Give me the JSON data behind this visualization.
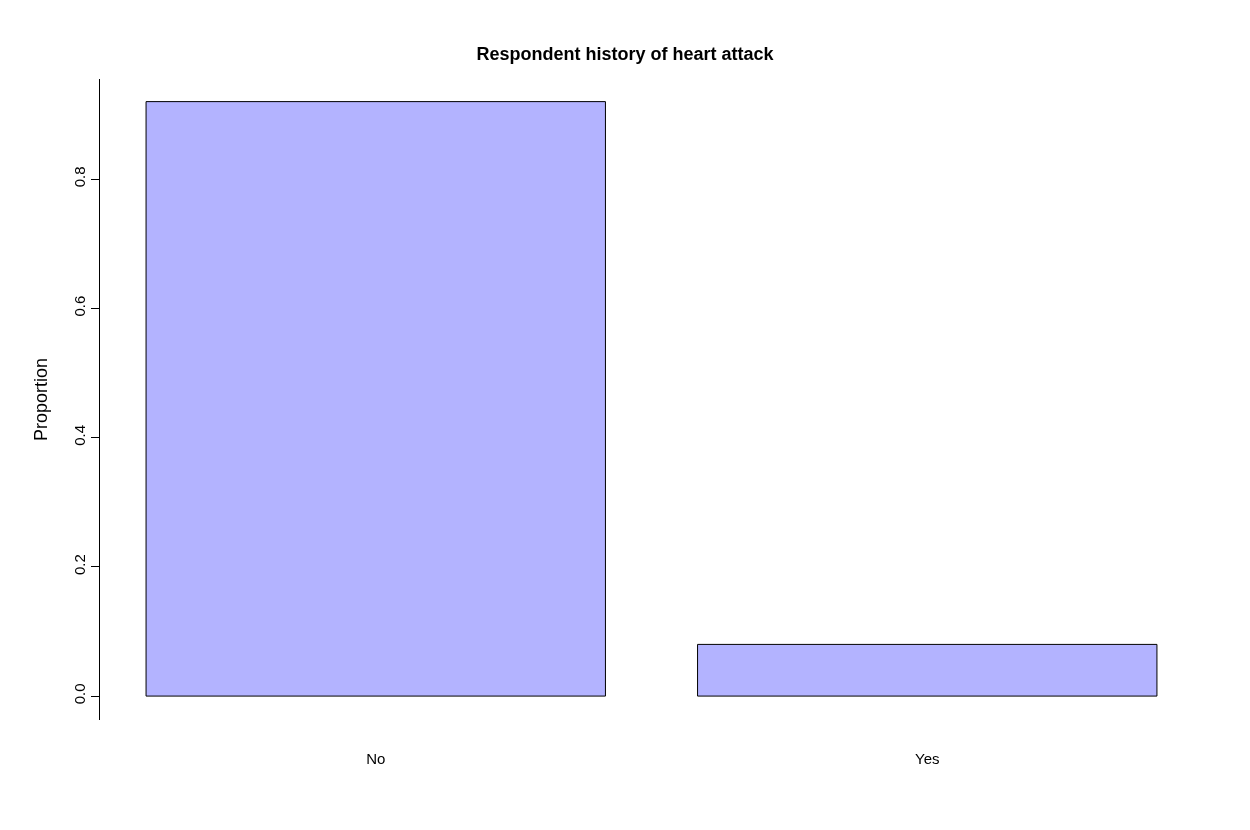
{
  "chart_data": {
    "type": "bar",
    "title": "Respondent history of heart attack",
    "ylabel": "Proportion",
    "categories": [
      "No",
      "Yes"
    ],
    "values": [
      0.92,
      0.08
    ],
    "color": "#b3b3ff",
    "ylim": [
      -0.037,
      0.955
    ],
    "yticks": [
      {
        "value": 0,
        "label": "0.0"
      },
      {
        "value": 0.2,
        "label": "0.2"
      },
      {
        "value": 0.4,
        "label": "0.4"
      },
      {
        "value": 0.6,
        "label": "0.6"
      },
      {
        "value": 0.8,
        "label": "0.8"
      }
    ]
  }
}
